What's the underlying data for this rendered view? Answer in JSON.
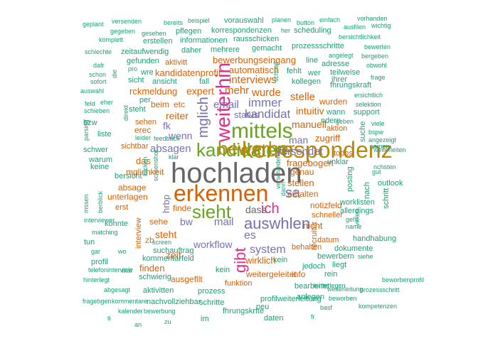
{
  "palette": {
    "dark": "#1b9e77",
    "orange": "#d95f02",
    "purple": "#7570b3",
    "pink": "#e7298a",
    "green": "#66a61e",
    "gold": "#b8860b",
    "brown": "#a6761d",
    "gray": "#666666"
  },
  "words": [
    "geplant",
    "versenden",
    "bereits",
    "beispiel",
    "planen",
    "button",
    "einfach",
    "vorhanden",
    "gegeben",
    "gesehen",
    "pflegen",
    "korrespondenzen",
    "her",
    "scheduling",
    "ausfilen",
    "wichtig",
    "komplett",
    "erstellen",
    "informationen",
    "rausschicken",
    "bersichtlichkeit",
    "schlechte",
    "zeitaufwendig",
    "daher",
    "mehrere",
    "gemacht",
    "prozessschritte",
    "bewerten",
    "gefunden",
    "vorauswahl",
    "angelegt",
    "bergeben",
    "dafr",
    "pro",
    "bewerbungseingang",
    "adresse",
    "obwohl",
    "kunden",
    "schon",
    "wre",
    "kandidatenprofil",
    "automatisch",
    "fehlt",
    "wer",
    "teilweise",
    "sofort",
    "sicht",
    "ansicht",
    "fall",
    "interviews",
    "kollegen",
    "ihrer",
    "frage",
    "auswahl",
    "rckmeldung",
    "expert",
    "mehr",
    "wurde",
    "fhrungskraft",
    "feld",
    "eher",
    "beim",
    "etc",
    "immer",
    "stelle",
    "ersichtlich",
    "vielleicht",
    "per",
    "email",
    "wurden",
    "selektion",
    "schieben",
    "steht",
    "reiter",
    "kandidat",
    "status",
    "intuitiv",
    "wann",
    "support",
    "bzw",
    "sehen",
    "fk",
    "tool",
    "ndern",
    "geben",
    "viele",
    "leider",
    "erec",
    "wenn",
    "manuell",
    "aktion",
    "bspw",
    "liste",
    "feedback",
    "zugriff",
    "angezeigt",
    "schwer",
    "sichtbar",
    "absagen",
    "versendet",
    "todos",
    "weiterleiten",
    "warum",
    "klar",
    "das",
    "fragebogen",
    "unklar",
    "nchsten",
    "keine",
    "mglichkeit",
    "genau",
    "gut",
    "bersicht",
    "stellen",
    "nach",
    "outlook",
    "absage",
    "erhalten",
    "worklisten",
    "unterlagen",
    "hrbp",
    "posting",
    "allerdings",
    "erst",
    "finde",
    "notizfeld",
    "schritt",
    "konnte",
    "sehe",
    "bw",
    "mail",
    "schneller",
    "vielen",
    "geht",
    "interviewer",
    "name",
    "matching",
    "interview",
    "manager",
    "nicht",
    "handhabung",
    "tun",
    "screen",
    "workflow",
    "datum",
    "gar",
    "wo",
    "suchauftrag",
    "zeit",
    "behalten",
    "auswhlen",
    "bewerbern",
    "dokumente",
    "siehe",
    "profil",
    "kommentarfeld",
    "wirklich",
    "liegt",
    "telefoninterview",
    "mir",
    "finden",
    "kein",
    "verffentlichen",
    "jedoch",
    "hinterlegt",
    "schwierig",
    "ausgefllt",
    "weitergeleitet",
    "info",
    "rein",
    "hinterlegen",
    "beworbenprofil",
    "abgesagt",
    "funktion",
    "bearbeitet",
    "weiterleitung",
    "prozessschritt",
    "aktivitten",
    "prozess",
    "profilweiterleitung",
    "anlegen",
    "beworben",
    "fragebgen",
    "kommentare",
    "nachvollziehbar",
    "schritte",
    "neu",
    "basf",
    "kompetenzen",
    "kalender",
    "bewerbung",
    "fhrungskrfte",
    "hochladen",
    "erkennen",
    "korrespondenz",
    "weiterhin",
    "mittels",
    "sieht",
    "kandidaten",
    "bewerber",
    "ich",
    "gibt",
    "mglich",
    "dass",
    "sa",
    "es",
    "system",
    "recruiter",
    "direkt",
    "zb",
    "die",
    "mssen",
    "berblick",
    "schnell",
    "aktivitt",
    "klicken",
    "screenshot",
    "verschieden",
    "prescreening",
    "bewertung",
    "job",
    "dann",
    "bearbeitung",
    "aktiv",
    "sf",
    "cv",
    "ti",
    "im",
    "daten",
    "fr",
    "zu",
    "an"
  ]
}
